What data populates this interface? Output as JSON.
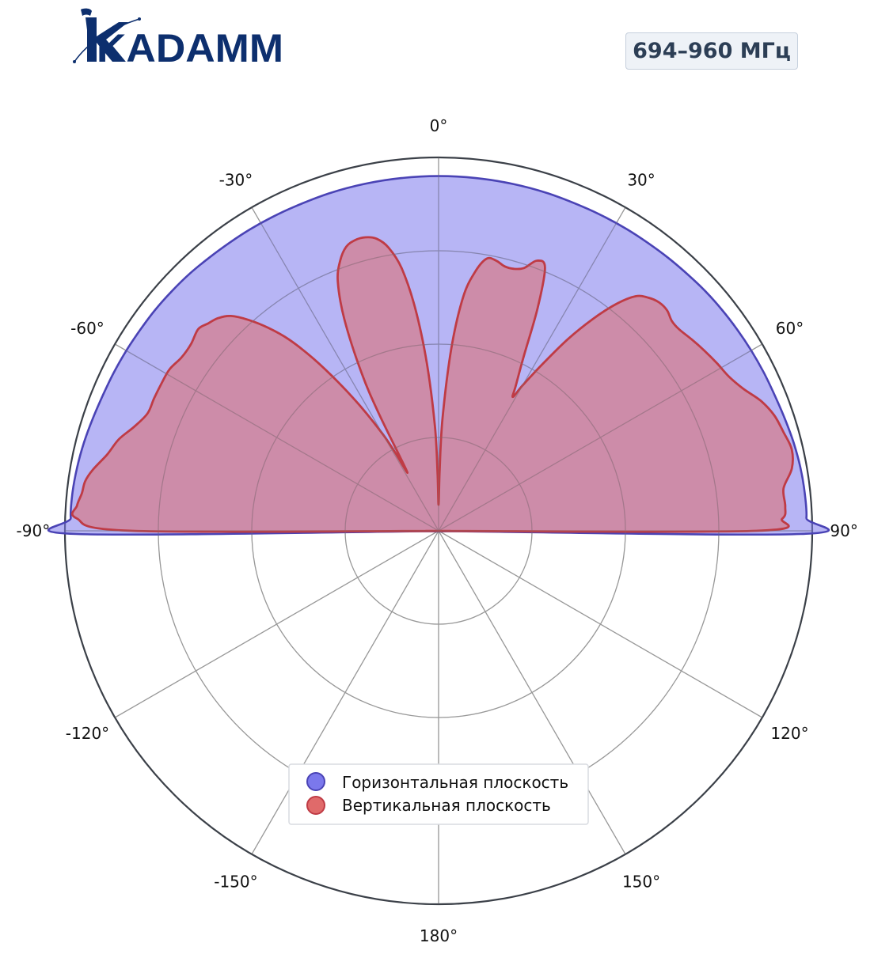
{
  "header": {
    "brand": "KADAMM",
    "frequency_badge": "694–960 МГц"
  },
  "colors": {
    "horizontal_fill": "#7b78ec",
    "horizontal_line": "#4a43b5",
    "vertical_fill": "#e06a6a",
    "vertical_line": "#bf3b45",
    "grid": "#aaaaaa",
    "outer_ring": "#3b4048",
    "brand": "#0d2f6e"
  },
  "chart_data": {
    "type": "polar",
    "theta_direction": "clockwise",
    "theta_zero": "top",
    "angle_ticks": [
      {
        "deg": 0,
        "label": "0°"
      },
      {
        "deg": 30,
        "label": "30°"
      },
      {
        "deg": 60,
        "label": "60°"
      },
      {
        "deg": 90,
        "label": "90°"
      },
      {
        "deg": 120,
        "label": "120°"
      },
      {
        "deg": 150,
        "label": "150°"
      },
      {
        "deg": 180,
        "label": "180°"
      },
      {
        "deg": -150,
        "label": "-150°"
      },
      {
        "deg": -120,
        "label": "-120°"
      },
      {
        "deg": -90,
        "label": "-90°"
      },
      {
        "deg": -60,
        "label": "-60°"
      },
      {
        "deg": -30,
        "label": "-30°"
      }
    ],
    "radial_grid": [
      0.25,
      0.5,
      0.75,
      1.0
    ],
    "rmax": 1.0,
    "radial_tick_labels": false,
    "legend_position": "lower-center",
    "series": [
      {
        "name": "Горизонтальная плоскость",
        "key": "horizontal",
        "points": [
          [
            -180,
            0
          ],
          [
            -90,
            0.0
          ],
          [
            -88,
            0.985
          ],
          [
            -86,
            0.985
          ],
          [
            -84,
            0.985
          ],
          [
            -80,
            0.985
          ],
          [
            -76,
            0.98
          ],
          [
            -72,
            0.975
          ],
          [
            -68,
            0.97
          ],
          [
            -64,
            0.968
          ],
          [
            -60,
            0.966
          ],
          [
            -56,
            0.963
          ],
          [
            -52,
            0.962
          ],
          [
            -48,
            0.96
          ],
          [
            -44,
            0.958
          ],
          [
            -40,
            0.955
          ],
          [
            -36,
            0.953
          ],
          [
            -33,
            0.952
          ],
          [
            -30,
            0.952
          ],
          [
            -27,
            0.951
          ],
          [
            -24,
            0.951
          ],
          [
            -20,
            0.951
          ],
          [
            -16,
            0.951
          ],
          [
            -12,
            0.951
          ],
          [
            -8,
            0.951
          ],
          [
            -4,
            0.951
          ],
          [
            0,
            0.951
          ],
          [
            4,
            0.951
          ],
          [
            8,
            0.951
          ],
          [
            12,
            0.951
          ],
          [
            16,
            0.951
          ],
          [
            20,
            0.951
          ],
          [
            24,
            0.951
          ],
          [
            27,
            0.951
          ],
          [
            30,
            0.952
          ],
          [
            33,
            0.952
          ],
          [
            36,
            0.953
          ],
          [
            40,
            0.955
          ],
          [
            44,
            0.957
          ],
          [
            48,
            0.96
          ],
          [
            52,
            0.962
          ],
          [
            56,
            0.964
          ],
          [
            60,
            0.966
          ],
          [
            64,
            0.968
          ],
          [
            68,
            0.97
          ],
          [
            72,
            0.975
          ],
          [
            76,
            0.98
          ],
          [
            80,
            0.985
          ],
          [
            84,
            0.985
          ],
          [
            86,
            0.985
          ],
          [
            88,
            0.985
          ],
          [
            90,
            0.0
          ],
          [
            180,
            0
          ]
        ],
        "outline_points": [
          [
            -90.5,
            0.97
          ],
          [
            -88,
            0.985
          ],
          [
            -84,
            0.985
          ],
          [
            -80,
            0.982
          ],
          [
            -76,
            0.978
          ],
          [
            -72,
            0.973
          ],
          [
            -68,
            0.969
          ],
          [
            -64,
            0.967
          ],
          [
            -60,
            0.965
          ],
          [
            -56,
            0.963
          ],
          [
            -52,
            0.962
          ],
          [
            -48,
            0.96
          ],
          [
            -44,
            0.958
          ],
          [
            -40,
            0.955
          ],
          [
            -36,
            0.953
          ],
          [
            -32,
            0.952
          ],
          [
            -28,
            0.951
          ],
          [
            -24,
            0.95
          ],
          [
            -18,
            0.95
          ],
          [
            -12,
            0.95
          ],
          [
            -6,
            0.95
          ],
          [
            0,
            0.95
          ],
          [
            6,
            0.95
          ],
          [
            12,
            0.95
          ],
          [
            18,
            0.95
          ],
          [
            24,
            0.95
          ],
          [
            28,
            0.951
          ],
          [
            32,
            0.952
          ],
          [
            36,
            0.953
          ],
          [
            40,
            0.955
          ],
          [
            44,
            0.957
          ],
          [
            48,
            0.96
          ],
          [
            52,
            0.962
          ],
          [
            56,
            0.964
          ],
          [
            60,
            0.966
          ],
          [
            64,
            0.968
          ],
          [
            68,
            0.97
          ],
          [
            72,
            0.974
          ],
          [
            76,
            0.979
          ],
          [
            80,
            0.983
          ],
          [
            84,
            0.985
          ],
          [
            88,
            0.985
          ],
          [
            90.5,
            0.97
          ],
          [
            92,
            0.03
          ],
          [
            100,
            0.01
          ],
          [
            180,
            0.0
          ],
          [
            -100,
            0.01
          ],
          [
            -92,
            0.03
          ]
        ]
      },
      {
        "name": "Вертикальная плоскость",
        "key": "vertical",
        "points": [
          [
            -92,
            0.01
          ],
          [
            -90,
            0.82
          ],
          [
            -88,
            0.97
          ],
          [
            -86,
            0.97
          ],
          [
            -84,
            0.96
          ],
          [
            -82,
            0.955
          ],
          [
            -80,
            0.94
          ],
          [
            -77,
            0.91
          ],
          [
            -74,
            0.89
          ],
          [
            -71,
            0.86
          ],
          [
            -68,
            0.84
          ],
          [
            -65,
            0.84
          ],
          [
            -62,
            0.84
          ],
          [
            -59,
            0.84
          ],
          [
            -56,
            0.83
          ],
          [
            -53,
            0.83
          ],
          [
            -50,
            0.84
          ],
          [
            -48,
            0.83
          ],
          [
            -46,
            0.82
          ],
          [
            -44,
            0.8
          ],
          [
            -42,
            0.76
          ],
          [
            -40,
            0.71
          ],
          [
            -38,
            0.65
          ],
          [
            -36,
            0.57
          ],
          [
            -34,
            0.48
          ],
          [
            -32,
            0.39
          ],
          [
            -30,
            0.3
          ],
          [
            -29,
            0.24
          ],
          [
            -28,
            0.18
          ],
          [
            -27,
            0.35
          ],
          [
            -26,
            0.47
          ],
          [
            -24,
            0.62
          ],
          [
            -22,
            0.72
          ],
          [
            -20,
            0.77
          ],
          [
            -18,
            0.8
          ],
          [
            -16,
            0.81
          ],
          [
            -14,
            0.81
          ],
          [
            -12,
            0.8
          ],
          [
            -10,
            0.77
          ],
          [
            -8,
            0.71
          ],
          [
            -6,
            0.6
          ],
          [
            -4,
            0.45
          ],
          [
            -2,
            0.28
          ],
          [
            -1,
            0.15
          ],
          [
            0,
            0.07
          ],
          [
            1,
            0.16
          ],
          [
            2,
            0.3
          ],
          [
            4,
            0.49
          ],
          [
            6,
            0.63
          ],
          [
            8,
            0.7
          ],
          [
            10,
            0.74
          ],
          [
            12,
            0.74
          ],
          [
            14,
            0.73
          ],
          [
            16,
            0.73
          ],
          [
            18,
            0.74
          ],
          [
            20,
            0.77
          ],
          [
            22,
            0.76
          ],
          [
            24,
            0.65
          ],
          [
            26,
            0.52
          ],
          [
            28,
            0.44
          ],
          [
            29,
            0.41
          ],
          [
            30,
            0.45
          ],
          [
            32,
            0.53
          ],
          [
            34,
            0.62
          ],
          [
            36,
            0.7
          ],
          [
            38,
            0.77
          ],
          [
            40,
            0.82
          ],
          [
            42,
            0.84
          ],
          [
            44,
            0.85
          ],
          [
            46,
            0.85
          ],
          [
            48,
            0.84
          ],
          [
            50,
            0.84
          ],
          [
            53,
            0.85
          ],
          [
            56,
            0.86
          ],
          [
            59,
            0.87
          ],
          [
            62,
            0.88
          ],
          [
            65,
            0.9
          ],
          [
            68,
            0.93
          ],
          [
            71,
            0.95
          ],
          [
            74,
            0.96
          ],
          [
            77,
            0.97
          ],
          [
            80,
            0.96
          ],
          [
            83,
            0.93
          ],
          [
            86,
            0.93
          ],
          [
            88,
            0.92
          ],
          [
            90,
            0.85
          ],
          [
            92,
            0.01
          ]
        ]
      }
    ]
  },
  "legend": {
    "items": [
      {
        "label": "Горизонтальная плоскость",
        "key": "horizontal"
      },
      {
        "label": "Вертикальная плоскость",
        "key": "vertical"
      }
    ]
  }
}
